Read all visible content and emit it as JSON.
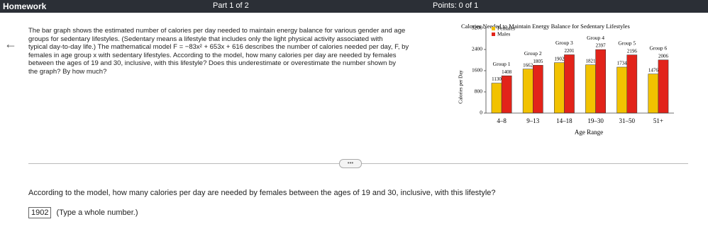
{
  "header": {
    "title": "Homework",
    "part": "Part 1 of 2",
    "points": "Points: 0 of 1"
  },
  "problem_lines": [
    "The bar graph shows the estimated number of calories per day needed to maintain energy balance for various gender and age",
    "groups for sedentary lifestyles. (Sedentary means a lifestyle that includes only the light physical activity associated with",
    "typical day-to-day life.) The mathematical model F = −83x² + 653x + 616 describes the number of calories needed per day, F, by",
    "females in age group x with sedentary lifestyles. According to the model, how many calories per day are needed by females",
    "between the ages of 19 and 30, inclusive, with this lifestyle? Does this underestimate or overestimate the number shown by",
    "the graph? By how much?"
  ],
  "chart": {
    "type": "bar",
    "title": "Calories Needed to Maintain Energy Balance for Sedentary Lifestyles",
    "x_label": "Age Range",
    "y_label": "Calories per Day",
    "categories": [
      "4–8",
      "9–13",
      "14–18",
      "19–30",
      "31–50",
      "51+"
    ],
    "groups": [
      "Group 1",
      "Group 2",
      "Group 3",
      "Group 4",
      "Group 5",
      "Group 6"
    ],
    "series": [
      {
        "name": "Females",
        "color": "#f2c200",
        "values": [
          1130,
          1662,
          1902,
          1821,
          1734,
          1476
        ]
      },
      {
        "name": "Males",
        "color": "#e2231a",
        "values": [
          1408,
          1805,
          2201,
          2397,
          2196,
          2006
        ]
      }
    ],
    "ylim": [
      0,
      3200
    ],
    "yticks": [
      0,
      800,
      1600,
      2400,
      3200
    ]
  },
  "question": "According to the model, how many calories per day are needed by females between the ages of 19 and 30, inclusive, with this lifestyle?",
  "answer": {
    "value": "1902",
    "hint": "(Type a whole number.)"
  }
}
